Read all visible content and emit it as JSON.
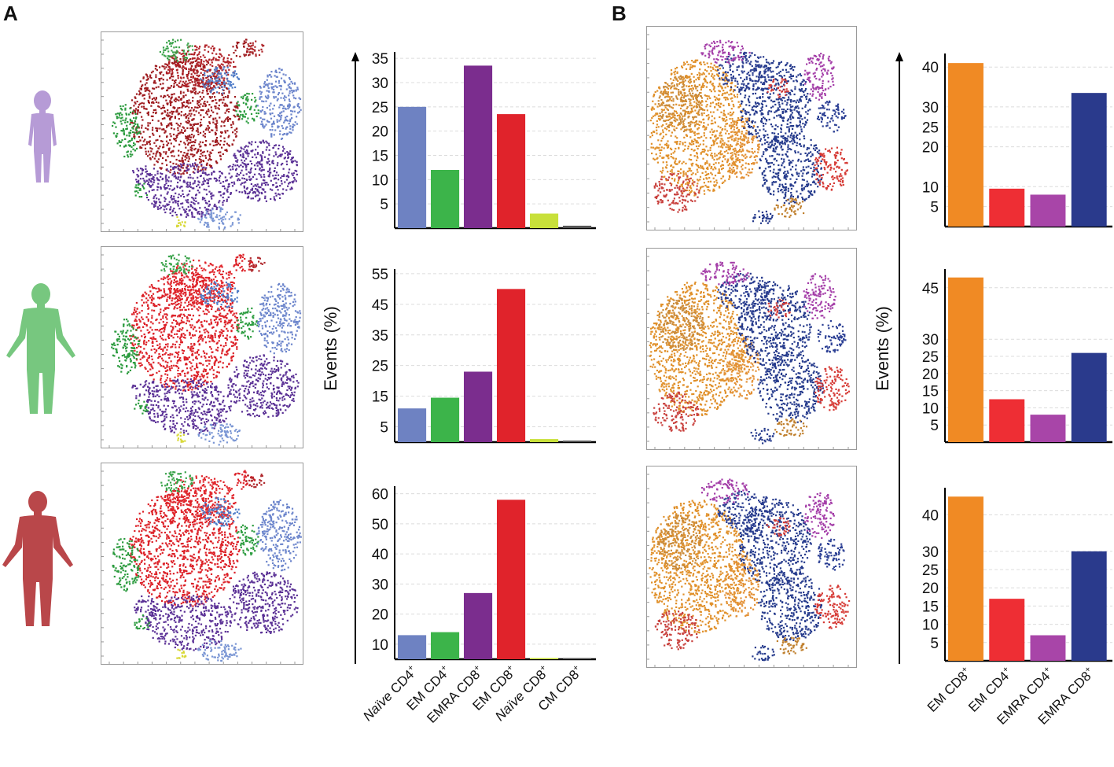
{
  "panels": {
    "a": {
      "letter": "A"
    },
    "b": {
      "letter": "B"
    }
  },
  "donors": [
    {
      "color": "#b69bd6",
      "name": "child"
    },
    {
      "color": "#77c77f",
      "name": "adult"
    },
    {
      "color": "#b9474a",
      "name": "elderly"
    }
  ],
  "ylabel": "Events (%)",
  "chart_data": [
    {
      "panel": "A",
      "row": 1,
      "type": "bar",
      "title": "",
      "categories": [
        "Naïve CD4+",
        "EM CD4+",
        "EMRA CD8+",
        "EM CD8+",
        "Naïve CD8+",
        "CM CD8+"
      ],
      "values": [
        25,
        12,
        33.5,
        23.5,
        3,
        0.5
      ],
      "colors": [
        "#6e82c2",
        "#3cb44a",
        "#7b2d8e",
        "#e0232b",
        "#c8e03a",
        "#555555"
      ],
      "yticks": [
        5,
        10,
        15,
        20,
        25,
        30,
        35
      ],
      "ylim": [
        0,
        36
      ],
      "ylabel": "Events (%)",
      "grid": true
    },
    {
      "panel": "A",
      "row": 2,
      "type": "bar",
      "title": "",
      "categories": [
        "Naïve CD4+",
        "EM CD4+",
        "EMRA CD8+",
        "EM CD8+",
        "Naïve CD8+",
        "CM CD8+"
      ],
      "values": [
        11,
        14.5,
        23,
        50,
        1,
        0.5
      ],
      "colors": [
        "#6e82c2",
        "#3cb44a",
        "#7b2d8e",
        "#e0232b",
        "#c8e03a",
        "#555555"
      ],
      "yticks": [
        5,
        15,
        25,
        35,
        45,
        55
      ],
      "ylim": [
        0,
        56
      ],
      "ylabel": "Events (%)",
      "grid": true
    },
    {
      "panel": "A",
      "row": 3,
      "type": "bar",
      "title": "",
      "categories": [
        "Naïve CD4+",
        "EM CD4+",
        "EMRA CD8+",
        "EM CD8+",
        "Naïve CD8+",
        "CM CD8+"
      ],
      "values": [
        13,
        14,
        27,
        58,
        1,
        0.5
      ],
      "colors": [
        "#6e82c2",
        "#3cb44a",
        "#7b2d8e",
        "#e0232b",
        "#c8e03a",
        "#555555"
      ],
      "yticks": [
        10,
        20,
        30,
        40,
        50,
        60
      ],
      "ylim": [
        5,
        62
      ],
      "ylabel": "Events (%)",
      "grid": true
    },
    {
      "panel": "B",
      "row": 1,
      "type": "bar",
      "title": "",
      "categories": [
        "EM CD8+",
        "EM CD4+",
        "EMRA CD4+",
        "EMRA CD8+"
      ],
      "values": [
        41,
        9.5,
        8,
        33.5
      ],
      "colors": [
        "#f08a24",
        "#ee2e34",
        "#a845a8",
        "#2a3a8c"
      ],
      "yticks": [
        5,
        10,
        20,
        25,
        30,
        40
      ],
      "ylim": [
        0,
        43
      ],
      "ylabel": "Events (%)",
      "grid": true
    },
    {
      "panel": "B",
      "row": 2,
      "type": "bar",
      "title": "",
      "categories": [
        "EM CD8+",
        "EM CD4+",
        "EMRA CD4+",
        "EMRA CD8+"
      ],
      "values": [
        48,
        12.5,
        8,
        26
      ],
      "colors": [
        "#f08a24",
        "#ee2e34",
        "#a845a8",
        "#2a3a8c"
      ],
      "yticks": [
        5,
        10,
        15,
        20,
        25,
        30,
        45
      ],
      "ylim": [
        0,
        50
      ],
      "ylabel": "Events (%)",
      "grid": true
    },
    {
      "panel": "B",
      "row": 3,
      "type": "bar",
      "title": "",
      "categories": [
        "EM CD8+",
        "EM CD4+",
        "EMRA CD4+",
        "EMRA CD8+"
      ],
      "values": [
        45,
        17,
        7,
        30
      ],
      "colors": [
        "#f08a24",
        "#ee2e34",
        "#a845a8",
        "#2a3a8c"
      ],
      "yticks": [
        5,
        10,
        15,
        20,
        25,
        30,
        40
      ],
      "ylim": [
        0,
        47
      ],
      "ylabel": "Events (%)",
      "grid": true
    }
  ],
  "xlabels_a": [
    {
      "pre": "Naïve",
      "main": " CD4",
      "sup": "+",
      "italic": true
    },
    {
      "pre": "",
      "main": "EM CD4",
      "sup": "+",
      "italic": false
    },
    {
      "pre": "",
      "main": "EMRA CD8",
      "sup": "+",
      "italic": false
    },
    {
      "pre": "",
      "main": "EM CD8",
      "sup": "+",
      "italic": false
    },
    {
      "pre": "Naïve",
      "main": " CD8",
      "sup": "+",
      "italic": true
    },
    {
      "pre": "",
      "main": "CM CD8",
      "sup": "+",
      "italic": false
    }
  ],
  "xlabels_b": [
    {
      "pre": "",
      "main": "EM CD8",
      "sup": "+",
      "italic": false
    },
    {
      "pre": "",
      "main": "EM CD4",
      "sup": "+",
      "italic": false
    },
    {
      "pre": "",
      "main": "EMRA CD4",
      "sup": "+",
      "italic": false
    },
    {
      "pre": "",
      "main": "EMRA CD8",
      "sup": "+",
      "italic": false
    }
  ]
}
